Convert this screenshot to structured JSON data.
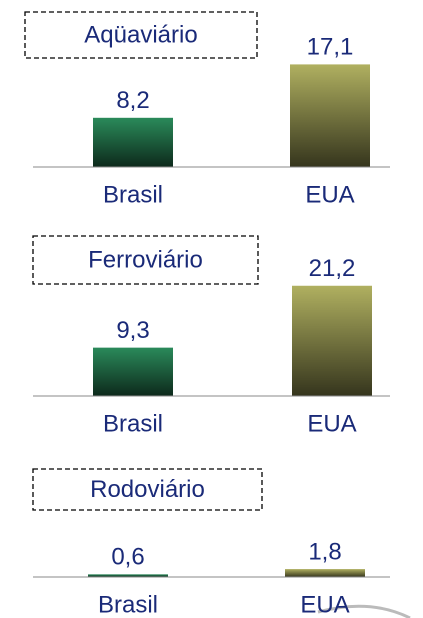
{
  "chart_data": [
    {
      "type": "bar",
      "title": "Aqüaviário",
      "categories": [
        "Brasil",
        "EUA"
      ],
      "values": [
        8.2,
        17.1
      ],
      "value_labels": [
        "8,2",
        "17,1"
      ],
      "colors": [
        "#2a8a5a",
        "#b0b060"
      ],
      "ylim": [
        0,
        20
      ]
    },
    {
      "type": "bar",
      "title": "Ferroviário",
      "categories": [
        "Brasil",
        "EUA"
      ],
      "values": [
        9.3,
        21.2
      ],
      "value_labels": [
        "9,3",
        "21,2"
      ],
      "colors": [
        "#2a8a5a",
        "#b0b060"
      ],
      "ylim": [
        0,
        25
      ]
    },
    {
      "type": "bar",
      "title": "Rodoviário",
      "categories": [
        "Brasil",
        "EUA"
      ],
      "values": [
        0.6,
        1.8
      ],
      "value_labels": [
        "0,6",
        "1,8"
      ],
      "colors": [
        "#2a8a5a",
        "#b0b060"
      ],
      "ylim": [
        0,
        25
      ]
    }
  ]
}
